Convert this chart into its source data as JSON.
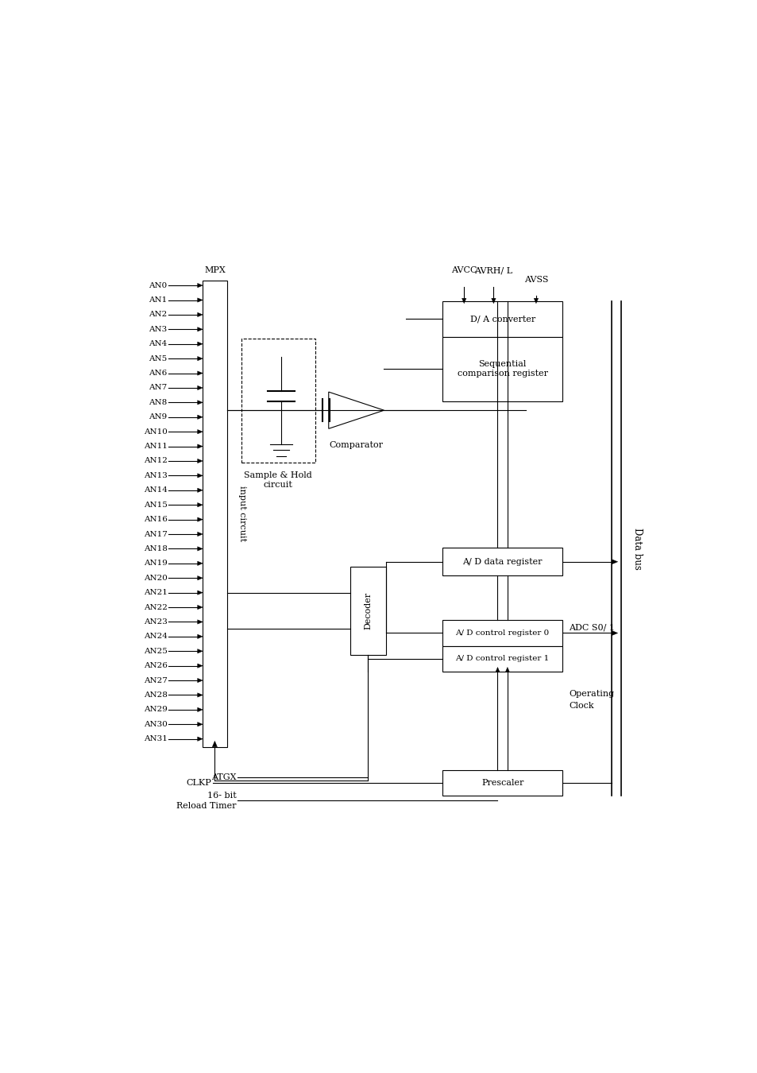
{
  "bg_color": "#ffffff",
  "lc": "#000000",
  "an_labels": [
    "AN0",
    "AN1",
    "AN2",
    "AN3",
    "AN4",
    "AN5",
    "AN6",
    "AN7",
    "AN8",
    "AN9",
    "AN10",
    "AN11",
    "AN12",
    "AN13",
    "AN14",
    "AN15",
    "AN16",
    "AN17",
    "AN18",
    "AN19",
    "AN20",
    "AN21",
    "AN22",
    "AN23",
    "AN24",
    "AN25",
    "AN26",
    "AN27",
    "AN28",
    "AN29",
    "AN30",
    "AN31"
  ],
  "mpx_label": "MPX",
  "input_circuit_label": "input circuit",
  "da_converter_label": "D/ A converter",
  "seq_comp_label1": "Sequential",
  "seq_comp_label2": "comparison register",
  "comparator_label": "Comparator",
  "sample_hold_label1": "Sample & Hold",
  "sample_hold_label2": "circuit",
  "decoder_label": "Decoder",
  "ad_data_reg_label": "A/ D data register",
  "ad_ctrl_reg0_label": "A/ D control register 0",
  "ad_ctrl_reg1_label": "A/ D control register 1",
  "adc_s01_label": "ADC S0/ 1",
  "operating_clock_label1": "Operating",
  "operating_clock_label2": "Clock",
  "prescaler_label": "Prescaler",
  "data_bus_label": "Data bus",
  "avcc_label": "AVCC",
  "avrhl_label": "AVRH/ L",
  "avss_label": "AVSS",
  "atgx_label": "ATGX",
  "reload_timer_label1": "16- bit",
  "reload_timer_label2": "Reload Timer",
  "clkp_label": "CLKP"
}
